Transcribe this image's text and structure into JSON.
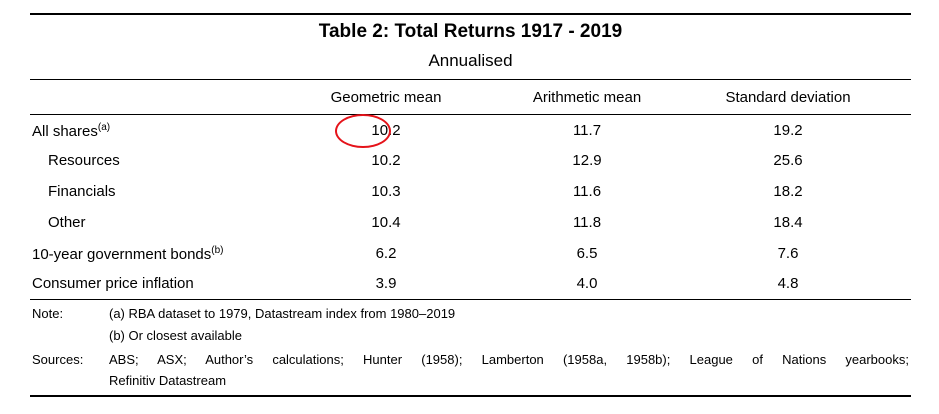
{
  "table": {
    "title": "Table 2: Total Returns 1917 - 2019",
    "subtitle": "Annualised",
    "columns": [
      "Geometric mean",
      "Arithmetic mean",
      "Standard deviation"
    ],
    "rows": [
      {
        "label": "All shares",
        "sup": "(a)",
        "values": [
          "10.2",
          "11.7",
          "19.2"
        ]
      },
      {
        "label": "Resources",
        "sup": "",
        "values": [
          "10.2",
          "12.9",
          "25.6"
        ]
      },
      {
        "label": "Financials",
        "sup": "",
        "values": [
          "10.3",
          "11.6",
          "18.2"
        ]
      },
      {
        "label": "Other",
        "sup": "",
        "values": [
          "10.4",
          "11.8",
          "18.4"
        ]
      },
      {
        "label": "10-year government bonds",
        "sup": "(b)",
        "values": [
          "6.2",
          "6.5",
          "7.6"
        ]
      },
      {
        "label": "Consumer price inflation",
        "sup": "",
        "values": [
          "3.9",
          "4.0",
          "4.8"
        ]
      }
    ]
  },
  "notes": {
    "note_label": "Note:",
    "note_a": "(a) RBA dataset to 1979, Datastream index from 1980–2019",
    "note_b": "(b) Or closest available",
    "sources_label": "Sources:",
    "sources_line1": "ABS; ASX; Author’s calculations; Hunter (1958); Lamberton (1958a, 1958b); League of Nations yearbooks;",
    "sources_line2": "Refinitiv Datastream"
  },
  "annotation": {
    "circle_color": "#e5131a"
  }
}
